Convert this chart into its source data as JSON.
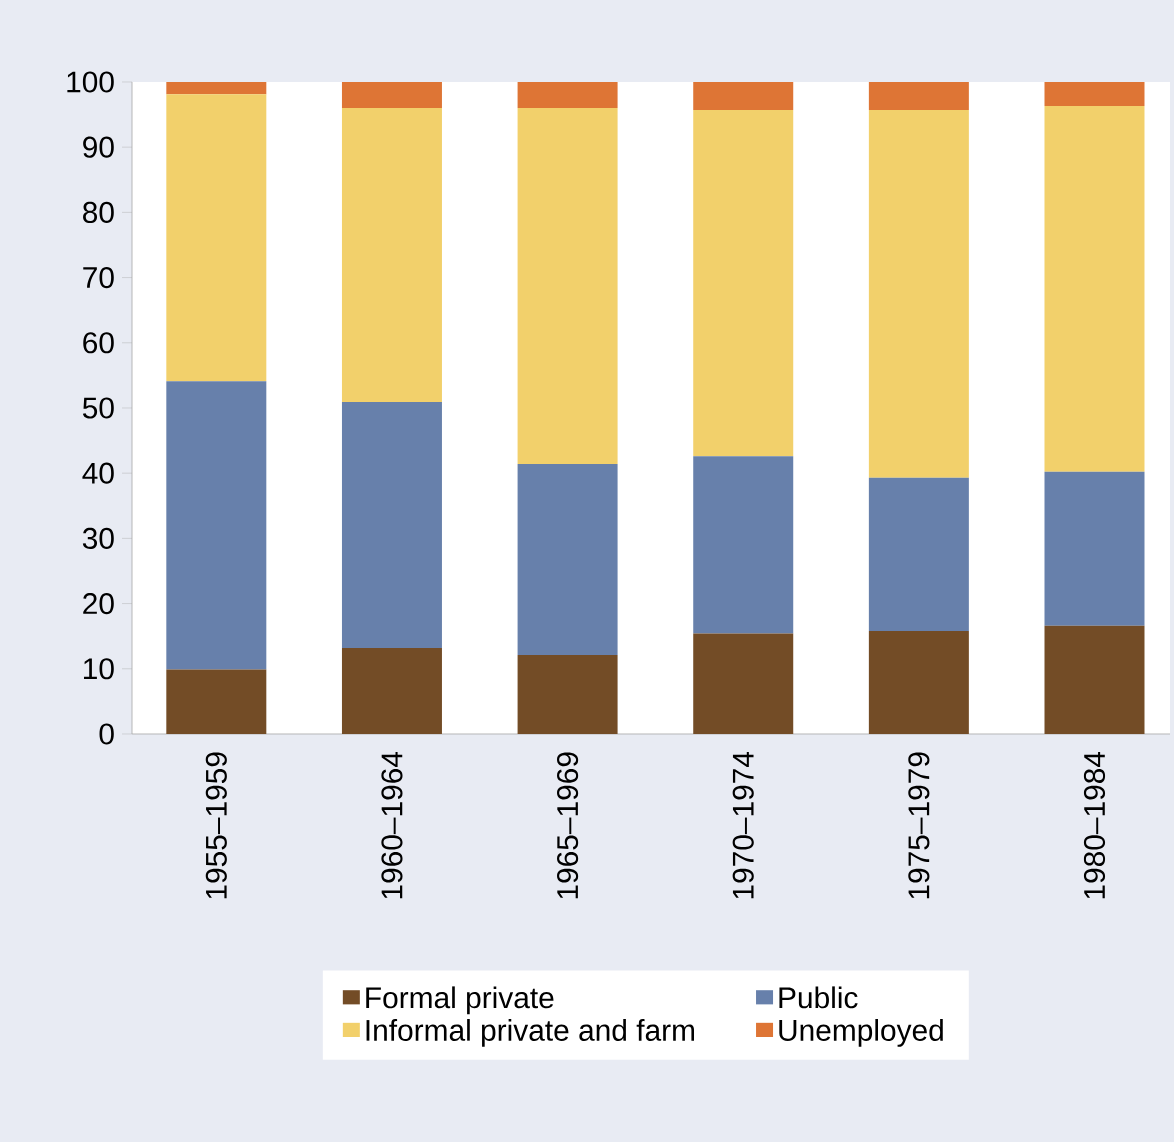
{
  "chart_data": {
    "type": "bar",
    "stacked": true,
    "categories": [
      "1955–1959",
      "1960–1964",
      "1965–1969",
      "1970–1974",
      "1975–1979",
      "1980–1984"
    ],
    "series": [
      {
        "name": "Formal private",
        "color": "#734c26",
        "values": [
          9.9,
          13.2,
          12.1,
          15.4,
          15.8,
          16.6
        ]
      },
      {
        "name": "Public",
        "color": "#6780ab",
        "values": [
          44.2,
          37.7,
          29.3,
          27.2,
          23.5,
          23.6
        ]
      },
      {
        "name": "Informal private and farm",
        "color": "#f2d06b",
        "values": [
          44,
          45.1,
          54.6,
          53.1,
          56.4,
          56.1
        ]
      },
      {
        "name": "Unemployed",
        "color": "#de7535",
        "values": [
          1.9,
          4,
          4,
          4.3,
          4.3,
          3.7
        ]
      }
    ],
    "ylim": [
      0,
      100
    ],
    "yticks": [
      0,
      10,
      20,
      30,
      40,
      50,
      60,
      70,
      80,
      90,
      100
    ],
    "grid": false,
    "legend": "bottom"
  }
}
